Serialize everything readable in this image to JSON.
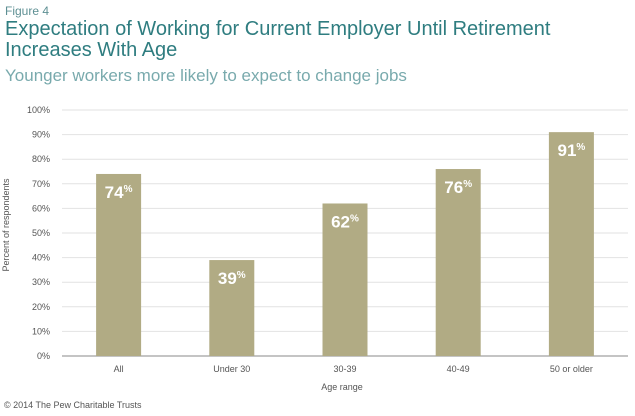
{
  "figure_label": "Figure 4",
  "footer": "© 2014 The Pew Charitable Trusts",
  "colors": {
    "bar": "#b1ab84",
    "title": "#2f7d80",
    "subtitle": "#79aaad",
    "grid": "#e2e2e2",
    "axis": "#555555"
  },
  "chart_data": {
    "type": "bar",
    "title": "Expectation of Working for Current Employer Until Retirement Increases With Age",
    "subtitle": "Younger workers more likely to expect to change jobs",
    "xlabel": "Age range",
    "ylabel": "Percent of respondents",
    "categories": [
      "All",
      "Under 30",
      "30-39",
      "40-49",
      "50 or older"
    ],
    "values": [
      74,
      39,
      62,
      76,
      91
    ],
    "data_labels": [
      "74%",
      "39%",
      "62%",
      "76%",
      "91%"
    ],
    "ylim": [
      0,
      100
    ],
    "yticks": [
      "0%",
      "10%",
      "20%",
      "30%",
      "40%",
      "50%",
      "60%",
      "70%",
      "80%",
      "90%",
      "100%"
    ],
    "grid": true,
    "legend": "none"
  }
}
